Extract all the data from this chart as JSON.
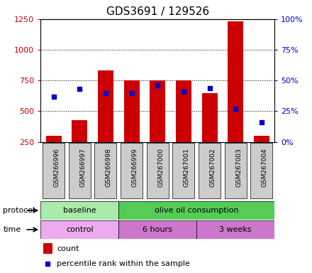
{
  "title": "GDS3691 / 129526",
  "samples": [
    "GSM266996",
    "GSM266997",
    "GSM266998",
    "GSM266999",
    "GSM267000",
    "GSM267001",
    "GSM267002",
    "GSM267003",
    "GSM267004"
  ],
  "counts": [
    300,
    430,
    830,
    750,
    750,
    750,
    650,
    1230,
    300
  ],
  "percentile_ranks": [
    37,
    43,
    40,
    40,
    46,
    41,
    44,
    27,
    16
  ],
  "ylim_left": [
    250,
    1250
  ],
  "ylim_right": [
    0,
    100
  ],
  "yticks_left": [
    250,
    500,
    750,
    1000,
    1250
  ],
  "yticks_right": [
    0,
    25,
    50,
    75,
    100
  ],
  "bar_color": "#cc0000",
  "dot_color": "#0000cc",
  "bar_bottom": 250,
  "protocol_groups": [
    {
      "label": "baseline",
      "start": 0,
      "end": 3,
      "color": "#aaeaaa"
    },
    {
      "label": "olive oil consumption",
      "start": 3,
      "end": 9,
      "color": "#55cc55"
    }
  ],
  "time_groups": [
    {
      "label": "control",
      "start": 0,
      "end": 3,
      "color": "#eeaaee"
    },
    {
      "label": "6 hours",
      "start": 3,
      "end": 6,
      "color": "#cc77cc"
    },
    {
      "label": "3 weeks",
      "start": 6,
      "end": 9,
      "color": "#cc77cc"
    }
  ],
  "legend_count_label": "count",
  "legend_pct_label": "percentile rank within the sample",
  "left_tick_color": "#cc0000",
  "right_tick_color": "#0000cc",
  "protocol_label": "protocol",
  "time_label": "time",
  "background_color": "#ffffff",
  "plot_bg_color": "#ffffff",
  "grid_color": "#000000",
  "title_color": "#000000",
  "sample_box_color": "#cccccc"
}
